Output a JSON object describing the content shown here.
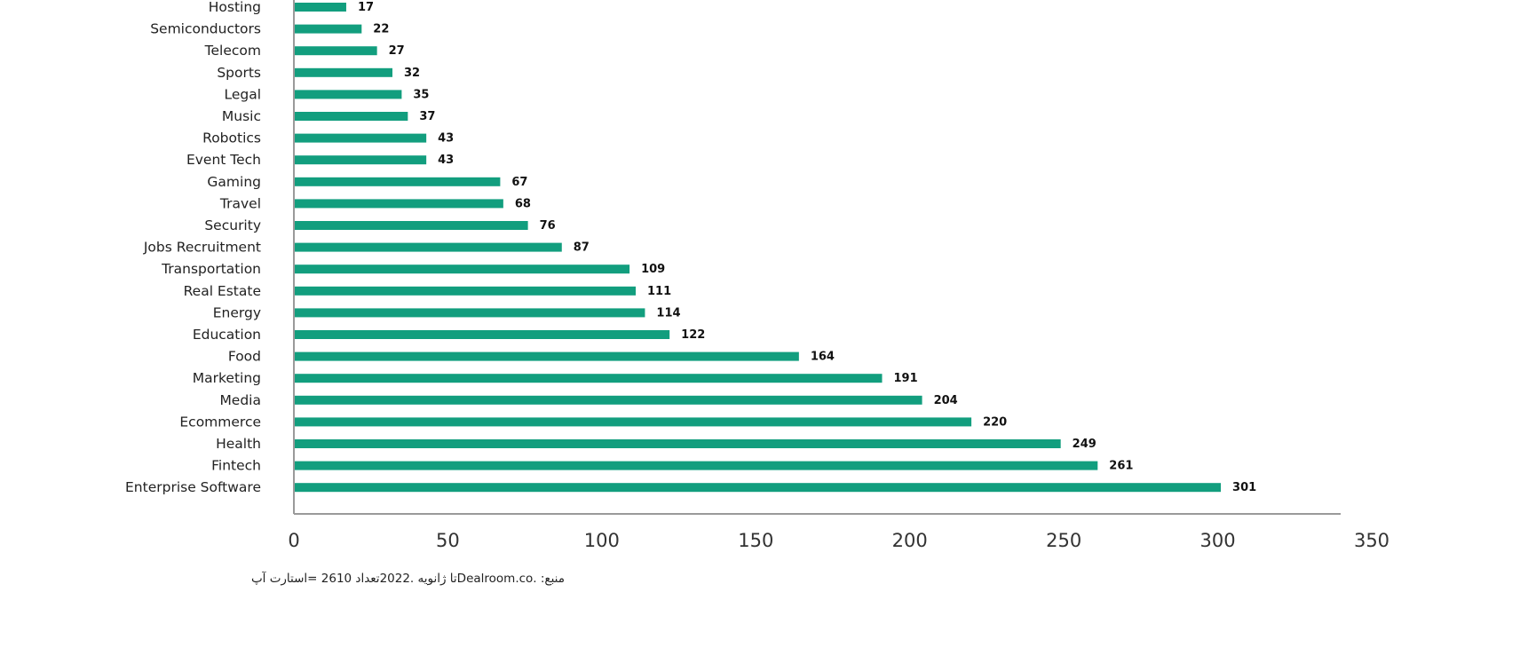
{
  "chart_data": {
    "type": "bar",
    "orientation": "horizontal",
    "categories": [
      "Hosting",
      "Semiconductors",
      "Telecom",
      "Sports",
      "Legal",
      "Music",
      "Robotics",
      "Event Tech",
      "Gaming",
      "Travel",
      "Security",
      "Jobs Recruitment",
      "Transportation",
      "Real Estate",
      "Energy",
      "Education",
      "Food",
      "Marketing",
      "Media",
      "Ecommerce",
      "Health",
      "Fintech",
      "Enterprise Software"
    ],
    "values": [
      17,
      22,
      27,
      32,
      35,
      37,
      43,
      43,
      67,
      68,
      76,
      87,
      109,
      111,
      114,
      122,
      164,
      191,
      204,
      220,
      249,
      261,
      301
    ],
    "xlim": [
      0,
      350
    ],
    "xticks": [
      0,
      50,
      100,
      150,
      200,
      250,
      300,
      350
    ],
    "bar_color": "#129e7e",
    "axis_color": "#9a9a9a",
    "grid": false,
    "title": "",
    "xlabel": "",
    "ylabel": ""
  },
  "source_note": "منبع:  .Dealroom.coتا ژانویه  .2022تعداد  2610 =استارت آپ"
}
